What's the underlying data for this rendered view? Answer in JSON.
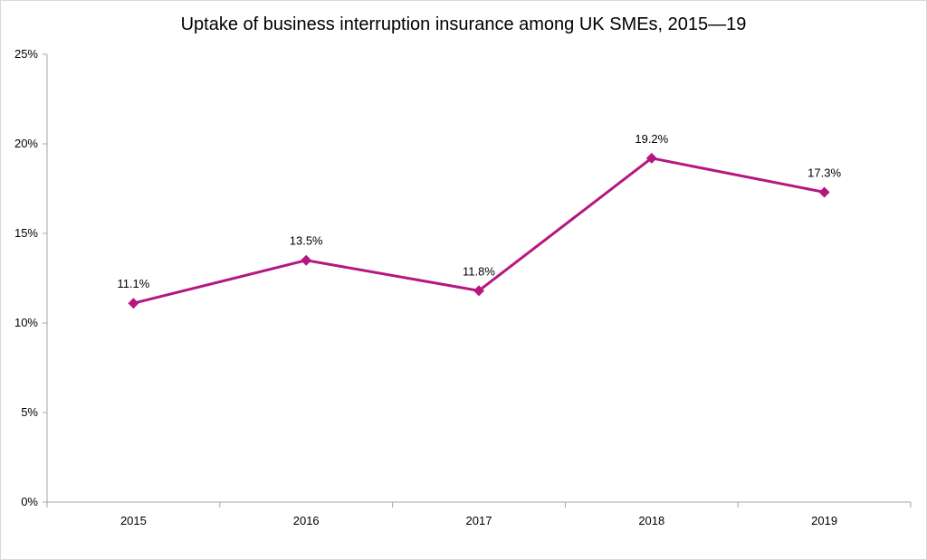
{
  "chart_data": {
    "type": "line",
    "title": "Uptake of business interruption insurance among UK SMEs, 2015—19",
    "xlabel": "",
    "ylabel": "",
    "categories": [
      "2015",
      "2016",
      "2017",
      "2018",
      "2019"
    ],
    "series": [
      {
        "values": [
          11.1,
          13.5,
          11.8,
          19.2,
          17.3
        ],
        "labels": [
          "11.1%",
          "13.5%",
          "11.8%",
          "19.2%",
          "17.3%"
        ],
        "color": "#b5177f",
        "marker": "diamond"
      }
    ],
    "ylim": [
      0,
      25
    ],
    "yticks": [
      0,
      5,
      10,
      15,
      20,
      25
    ],
    "ytick_labels": [
      "0%",
      "5%",
      "10%",
      "15%",
      "20%",
      "25%"
    ],
    "grid": false,
    "legend": "none"
  },
  "colors": {
    "series": "#b5177f",
    "axis": "#a6a6a6",
    "text": "#000000"
  }
}
